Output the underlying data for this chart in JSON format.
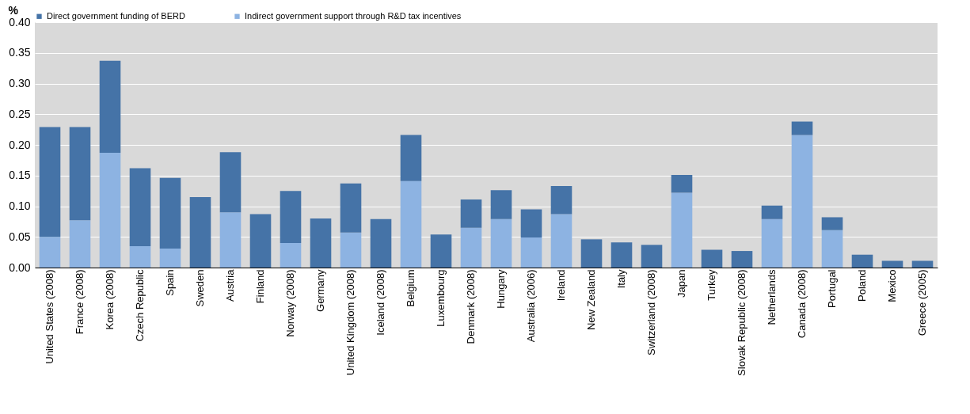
{
  "chart_data": {
    "type": "bar",
    "stacked": true,
    "ylabel": "%",
    "categories": [
      "United States (2008)",
      "France (2008)",
      "Korea (2008)",
      "Czech Republic",
      "Spain",
      "Sweden",
      "Austria",
      "Finland",
      "Norway (2008)",
      "Germany",
      "United Kingdom (2008)",
      "Iceland (2008)",
      "Belgium",
      "Luxembourg",
      "Denmark (2008)",
      "Hungary",
      "Australia (2006)",
      "Ireland",
      "New Zealand",
      "Italy",
      "Switzerland (2008)",
      "Japan",
      "Turkey",
      "Slovak Republic (2008)",
      "Netherlands",
      "Canada (2008)",
      "Portugal",
      "Poland",
      "Mexico",
      "Greece (2005)"
    ],
    "series": [
      {
        "name": "Indirect government support through R&D tax incentives",
        "color": "#8db3e2",
        "values": [
          0.05,
          0.077,
          0.187,
          0.035,
          0.031,
          null,
          0.09,
          null,
          0.04,
          null,
          0.057,
          null,
          0.141,
          null,
          0.065,
          0.079,
          0.049,
          0.087,
          null,
          null,
          null,
          0.122,
          null,
          null,
          0.079,
          0.216,
          0.061,
          null,
          null,
          null
        ]
      },
      {
        "name": "Direct government funding of BERD",
        "color": "#4573a7",
        "values": [
          0.179,
          0.152,
          0.15,
          0.127,
          0.115,
          0.115,
          0.098,
          0.087,
          0.085,
          0.08,
          0.08,
          0.079,
          0.075,
          0.054,
          0.046,
          0.047,
          0.046,
          0.046,
          0.046,
          0.041,
          0.037,
          0.029,
          0.029,
          0.027,
          0.022,
          0.022,
          0.021,
          0.021,
          0.011,
          0.011
        ]
      }
    ],
    "ylim": [
      0,
      0.4
    ],
    "yticks": [
      {
        "value": 0,
        "label": "0.00"
      },
      {
        "value": 0.05,
        "label": "0.05"
      },
      {
        "value": 0.1,
        "label": "0.10"
      },
      {
        "value": 0.15,
        "label": "0.15"
      },
      {
        "value": 0.2,
        "label": "0.20"
      },
      {
        "value": 0.25,
        "label": "0.25"
      },
      {
        "value": 0.3,
        "label": "0.30"
      },
      {
        "value": 0.35,
        "label": "0.35"
      },
      {
        "value": 0.4,
        "label": "0.40"
      }
    ],
    "grid": "y",
    "legend": "top"
  }
}
